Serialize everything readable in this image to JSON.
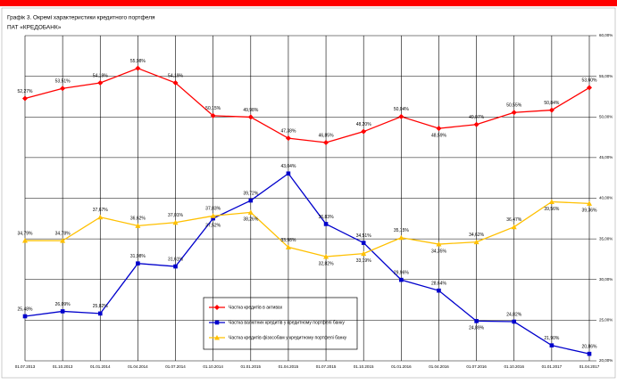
{
  "chart_data": {
    "type": "line",
    "title": "Графік 3. Окремі характеристики кредитного портфеля",
    "subtitle": "ПАТ «КРЕДОБАНК»",
    "categories": [
      "01.07.2013",
      "01.10.2013",
      "01.01.2014",
      "01.04.2014",
      "01.07.2014",
      "01.10.2014",
      "01.01.2015",
      "01.04.2015",
      "01.07.2015",
      "01.10.2015",
      "01.01.2016",
      "01.04.2016",
      "01.07.2016",
      "01.10.2016",
      "01.01.2017",
      "01.04.2017"
    ],
    "series": [
      {
        "name": "Частка кредитів в активах",
        "color": "#ff0000",
        "values": [
          52.27,
          53.51,
          54.19,
          55.98,
          54.19,
          50.15,
          49.98,
          47.38,
          46.85,
          48.2,
          50.04,
          48.59,
          49.07,
          50.55,
          50.84,
          53.6
        ],
        "value_labels": [
          "52,27%",
          "53,51%",
          "54,19%",
          "55,98%",
          "54,19%",
          "50,15%",
          "49,98%",
          "47,38%",
          "46,85%",
          "48,20%",
          "50,04%",
          "48,59%",
          "49,07%",
          "50,55%",
          "50,84%",
          "53,60%"
        ]
      },
      {
        "name": "Частка валютних кредитів у кредитному портфелі банку",
        "color": "#0000cc",
        "values": [
          25.48,
          26.09,
          25.82,
          31.98,
          31.61,
          37.52,
          39.72,
          43.04,
          36.83,
          34.51,
          29.96,
          28.64,
          24.89,
          24.82,
          21.9,
          20.86
        ],
        "value_labels": [
          "25,48%",
          "26,09%",
          "25,82%",
          "31,98%",
          "31,61%",
          "37,52%",
          "39,72%",
          "43,04%",
          "36,83%",
          "34,51%",
          "29,96%",
          "28,64%",
          "24,89%",
          "24,82%",
          "21,90%",
          "20,86%"
        ]
      },
      {
        "name": "Частка кредитів фізособам у кредитному портфелі банку",
        "color": "#ffc000",
        "values": [
          34.79,
          34.78,
          37.67,
          36.62,
          37.01,
          37.83,
          38.26,
          33.98,
          32.82,
          33.19,
          35.15,
          34.35,
          34.62,
          36.47,
          39.56,
          39.36
        ],
        "value_labels": [
          "34,79%",
          "34,78%",
          "37,67%",
          "36,62%",
          "37,01%",
          "37,83%",
          "38,26%",
          "33,98%",
          "32,82%",
          "33,19%",
          "35,15%",
          "34,35%",
          "34,62%",
          "36,47%",
          "39,56%",
          "39,36%"
        ]
      }
    ],
    "ylim": [
      20,
      60
    ],
    "yticks": [
      {
        "value": 20,
        "label": "20,00%"
      },
      {
        "value": 25,
        "label": "25,00%"
      },
      {
        "value": 30,
        "label": "30,00%"
      },
      {
        "value": 35,
        "label": "35,00%"
      },
      {
        "value": 40,
        "label": "40,00%"
      },
      {
        "value": 45,
        "label": "45,00%"
      },
      {
        "value": 50,
        "label": "50,00%"
      },
      {
        "value": 55,
        "label": "55,00%"
      },
      {
        "value": 60,
        "label": "60,00%"
      }
    ],
    "grid": true
  }
}
